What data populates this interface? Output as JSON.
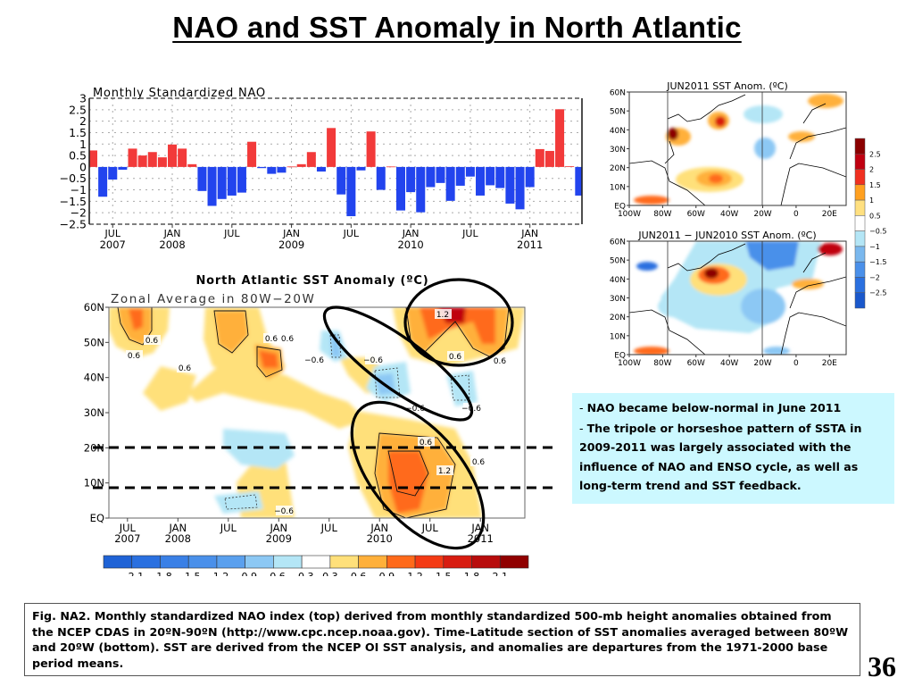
{
  "slide": {
    "title": "NAO and SST Anomaly in North Atlantic",
    "page_number": "36"
  },
  "notes": [
    {
      "dash": "- ",
      "text": "NAO became below-normal in June 2011"
    },
    {
      "dash": "- ",
      "text": "The tripole or horseshoe pattern of SSTA in 2009-2011 was largely associated with the influence of NAO and ENSO cycle, as well as long-term trend and SST feedback."
    }
  ],
  "caption": "Fig. NA2. Monthly standardized NAO index (top) derived from monthly standardized 500-mb height anomalies obtained from the NCEP CDAS in 20ºN-90ºN (http://www.cpc.ncep.noaa.gov).  Time-Latitude section of SST anomalies averaged between 80ºW and 20ºW (bottom). SST are derived from the NCEP OI SST analysis, and anomalies are departures from the 1971-2000 base period means.",
  "colors": {
    "positive_bar": "#f23a3a",
    "negative_bar": "#2244ee",
    "note_bg": "#ccf8ff"
  },
  "chart_data": [
    {
      "type": "bar",
      "title": "Monthly Standardized NAO",
      "xlabel": "",
      "ylabel": "",
      "ylim": [
        -2.5,
        3
      ],
      "yticks": [
        3,
        2.5,
        2,
        1.5,
        1,
        0.5,
        0,
        -0.5,
        -1,
        -1.5,
        -2,
        -2.5
      ],
      "ytick_labels": [
        "3",
        "2.5",
        "2",
        "1.5",
        "1",
        "0.5",
        "0",
        "−0.5",
        "−1",
        "−1.5",
        "−2",
        "−2.5"
      ],
      "xtick_labels": [
        {
          "month": "JUL",
          "year": "2007",
          "index": 2
        },
        {
          "month": "JAN",
          "year": "2008",
          "index": 8
        },
        {
          "month": "JUL",
          "year": "",
          "index": 14
        },
        {
          "month": "JAN",
          "year": "2009",
          "index": 20
        },
        {
          "month": "JUL",
          "year": "",
          "index": 26
        },
        {
          "month": "JAN",
          "year": "2010",
          "index": 32
        },
        {
          "month": "JUL",
          "year": "",
          "index": 38
        },
        {
          "month": "JAN",
          "year": "2011",
          "index": 44
        }
      ],
      "grid": true,
      "start": "May 2007",
      "end": "Jun 2011",
      "categories": [
        "May07",
        "Jun07",
        "Jul07",
        "Aug07",
        "Sep07",
        "Oct07",
        "Nov07",
        "Dec07",
        "Jan08",
        "Feb08",
        "Mar08",
        "Apr08",
        "May08",
        "Jun08",
        "Jul08",
        "Aug08",
        "Sep08",
        "Oct08",
        "Nov08",
        "Dec08",
        "Jan09",
        "Feb09",
        "Mar09",
        "Apr09",
        "May09",
        "Jun09",
        "Jul09",
        "Aug09",
        "Sep09",
        "Oct09",
        "Nov09",
        "Dec09",
        "Jan10",
        "Feb10",
        "Mar10",
        "Apr10",
        "May10",
        "Jun10",
        "Jul10",
        "Aug10",
        "Sep10",
        "Oct10",
        "Nov10",
        "Dec10",
        "Jan11",
        "Feb11",
        "Mar11",
        "Apr11",
        "May11",
        "Jun11"
      ],
      "values": [
        0.72,
        -1.3,
        -0.55,
        -0.12,
        0.8,
        0.5,
        0.65,
        0.42,
        0.98,
        0.8,
        0.12,
        -1.05,
        -1.7,
        -1.4,
        -1.25,
        -1.12,
        1.1,
        -0.05,
        -0.3,
        -0.25,
        0.02,
        0.12,
        0.65,
        -0.2,
        1.7,
        -1.2,
        -2.15,
        -0.15,
        1.55,
        -1.0,
        0.02,
        -1.9,
        -1.1,
        -1.98,
        -0.88,
        -0.7,
        -1.48,
        -0.82,
        -0.42,
        -1.25,
        -0.8,
        -0.92,
        -1.6,
        -1.85,
        -0.88,
        0.78,
        0.7,
        2.52,
        0.03,
        -1.25
      ]
    },
    {
      "type": "heatmap",
      "title": "North Atlantic SST Anomaly (ºC)",
      "subtitle": "Zonal Average in 80W−20W",
      "xlabel": "",
      "ylabel": "",
      "yticks": [
        "60N",
        "50N",
        "40N",
        "30N",
        "20N",
        "10N",
        "EQ"
      ],
      "ylim": [
        0,
        60
      ],
      "xlim": [
        "May 2007",
        "Jun 2011"
      ],
      "xtick_labels": [
        {
          "month": "JUL",
          "year": "2007"
        },
        {
          "month": "JAN",
          "year": "2008"
        },
        {
          "month": "JUL",
          "year": ""
        },
        {
          "month": "JAN",
          "year": "2009"
        },
        {
          "month": "JUL",
          "year": ""
        },
        {
          "month": "JAN",
          "year": "2010"
        },
        {
          "month": "JUL",
          "year": ""
        },
        {
          "month": "JAN",
          "year": "2011"
        }
      ],
      "contour_labels": [
        "0.6",
        "0.6",
        "0.6",
        "0.6",
        "-0.6",
        "0.6",
        "1.2",
        "0.6",
        "-0.6",
        "-0.6",
        "-0.6",
        "0.6",
        "1.2",
        "0.6",
        "0.6",
        "-0.6"
      ],
      "reference_lines_lat": [
        20,
        8
      ],
      "annotations": [
        "ellipse: warm subpolar 2010-2011",
        "ellipse: cool mid-latitude band 2009-2010",
        "ellipse: warm tropics 2010"
      ],
      "colorbar": {
        "levels": [
          "−2.1",
          "−1.8",
          "−1.5",
          "−1.2",
          "−0.9",
          "−0.6",
          "−0.3",
          "0.3",
          "0.6",
          "0.9",
          "1.2",
          "1.5",
          "1.8",
          "2.1"
        ],
        "colors": [
          "#1f63d6",
          "#2a70e0",
          "#3a80e6",
          "#4a90ea",
          "#5aa0ee",
          "#8cc8f4",
          "#b4e6f6",
          "#ffffff",
          "#ffe07a",
          "#ffb03a",
          "#ff6a1a",
          "#f43a14",
          "#d81c10",
          "#b80c0c",
          "#900000"
        ]
      }
    },
    {
      "type": "heatmap",
      "title": "JUN2011 SST Anom. (ºC)",
      "xticks": [
        "100W",
        "80W",
        "60W",
        "40W",
        "20W",
        "0",
        "20E"
      ],
      "yticks": [
        "60N",
        "50N",
        "40N",
        "30N",
        "20N",
        "10N",
        "EQ"
      ]
    },
    {
      "type": "heatmap",
      "title": "JUN2011 − JUN2010 SST Anom. (ºC)",
      "xticks": [
        "100W",
        "80W",
        "60W",
        "40W",
        "20W",
        "0",
        "20E"
      ],
      "yticks": [
        "60N",
        "50N",
        "40N",
        "30N",
        "20N",
        "10N",
        "EQ"
      ],
      "colorbar": {
        "levels": [
          "2.5",
          "2",
          "1.5",
          "1",
          "0.5",
          "−0.5",
          "−1",
          "−1.5",
          "−2",
          "−2.5"
        ],
        "colors": [
          "#8b0000",
          "#c00010",
          "#f03020",
          "#ffa020",
          "#ffe080",
          "#ffffff",
          "#b4e6f6",
          "#7ab8ee",
          "#4a90ea",
          "#2a70e0",
          "#1a58cc"
        ]
      }
    }
  ]
}
